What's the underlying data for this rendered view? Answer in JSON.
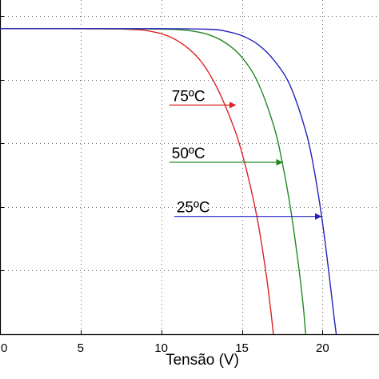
{
  "chart_data": {
    "type": "line",
    "xlabel": "Tensão (V)",
    "ylabel": "",
    "xlim": [
      0,
      23.5
    ],
    "ylim": [
      0,
      1.05
    ],
    "x_ticks": [
      0,
      5,
      10,
      15,
      20
    ],
    "x_tick_labels": [
      "0",
      "5",
      "10",
      "15",
      "20"
    ],
    "y_gridlines": [
      0.2,
      0.4,
      0.6,
      0.8,
      1.0
    ],
    "grid": true,
    "series": [
      {
        "name": "75ºC",
        "color": "#dd2222",
        "x": [
          0,
          4,
          8,
          9.5,
          10.5,
          11.5,
          12.5,
          13.5,
          14.5,
          15,
          15.5,
          16,
          16.5,
          16.8,
          16.95
        ],
        "y": [
          0.96,
          0.96,
          0.958,
          0.95,
          0.935,
          0.905,
          0.855,
          0.77,
          0.65,
          0.57,
          0.47,
          0.35,
          0.19,
          0.07,
          0
        ]
      },
      {
        "name": "50ºC",
        "color": "#228822",
        "x": [
          0,
          5,
          9,
          11,
          12,
          13,
          14,
          15,
          16,
          17,
          17.5,
          18,
          18.5,
          18.8,
          18.95
        ],
        "y": [
          0.96,
          0.96,
          0.959,
          0.957,
          0.952,
          0.94,
          0.915,
          0.87,
          0.79,
          0.65,
          0.54,
          0.4,
          0.22,
          0.09,
          0
        ]
      },
      {
        "name": "25ºC",
        "color": "#2222bb",
        "x": [
          0,
          6,
          10,
          13,
          14,
          15,
          16,
          17,
          18,
          19,
          19.5,
          20,
          20.4,
          20.7,
          20.85
        ],
        "y": [
          0.96,
          0.96,
          0.96,
          0.958,
          0.952,
          0.938,
          0.91,
          0.86,
          0.78,
          0.63,
          0.51,
          0.35,
          0.19,
          0.06,
          0
        ]
      }
    ],
    "annotations": [
      {
        "text": "75ºC",
        "color": "#dd2222",
        "arrow_from": [
          10.5,
          0.72
        ],
        "arrow_to": [
          14.6,
          0.72
        ]
      },
      {
        "text": "50ºC",
        "color": "#228822",
        "arrow_from": [
          10.5,
          0.54
        ],
        "arrow_to": [
          17.5,
          0.54
        ]
      },
      {
        "text": "25ºC",
        "color": "#2222bb",
        "arrow_from": [
          10.8,
          0.37
        ],
        "arrow_to": [
          19.9,
          0.37
        ]
      }
    ]
  }
}
